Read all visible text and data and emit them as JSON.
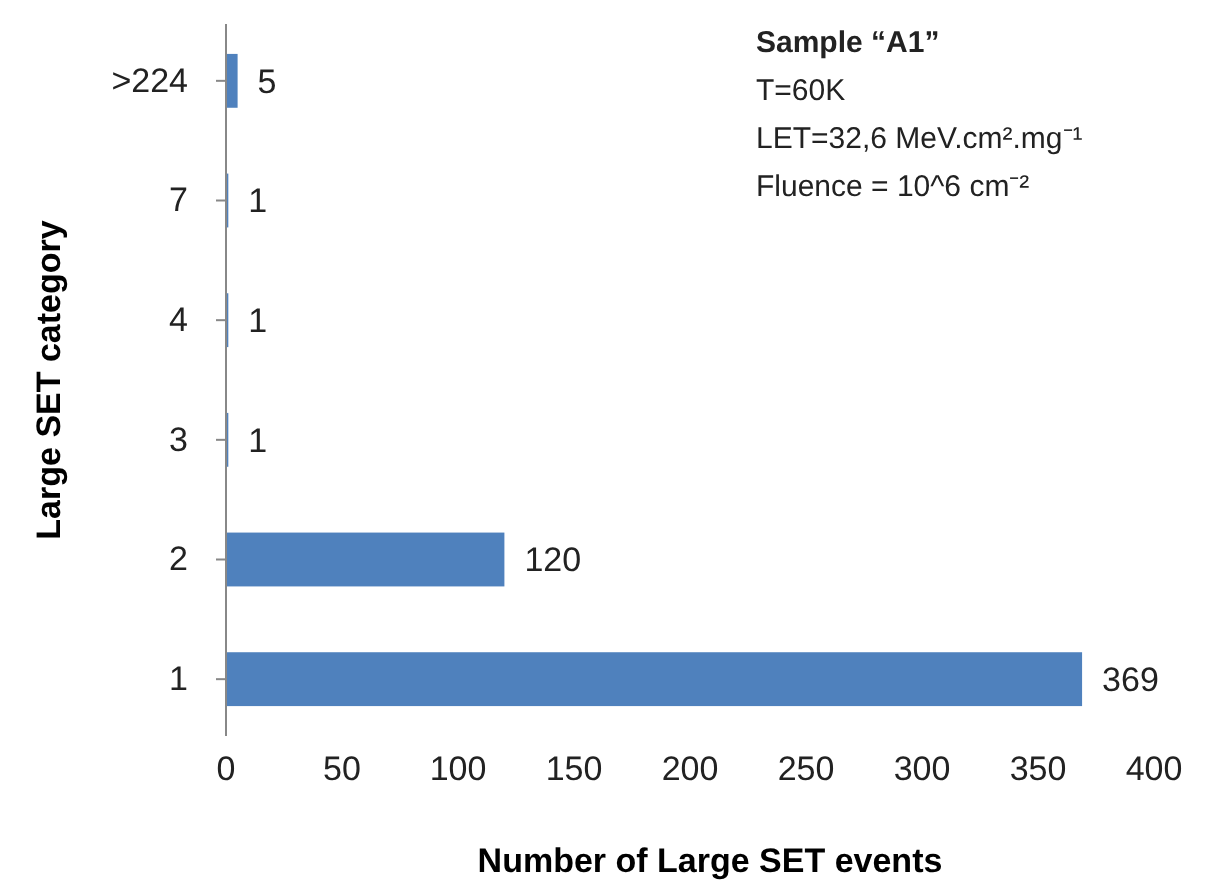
{
  "chart_data": {
    "type": "bar",
    "orientation": "horizontal",
    "xlabel": "Number of Large SET events",
    "ylabel": "Large SET category",
    "categories": [
      ">224",
      "7",
      "4",
      "3",
      "2",
      "1"
    ],
    "values": [
      5,
      1,
      1,
      1,
      120,
      369
    ],
    "color": "#4f81bd",
    "data_labels": true,
    "xlim": [
      0,
      400
    ],
    "xticks": [
      0,
      50,
      100,
      150,
      200,
      250,
      300,
      350,
      400
    ],
    "grid": false,
    "annotations": [
      "Sample “A1”",
      "T=60K",
      "LET=32,6 MeV.cm².mg⁻¹",
      "Fluence = 10^6 cm⁻²"
    ]
  }
}
